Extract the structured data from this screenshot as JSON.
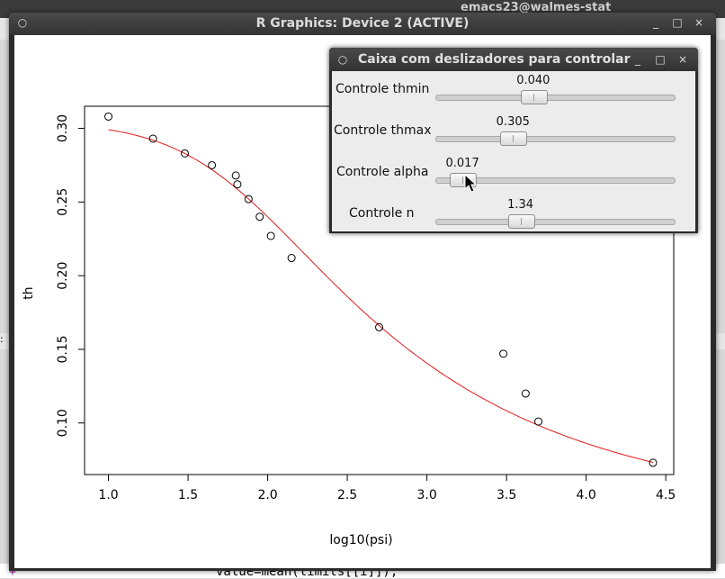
{
  "background": {
    "emacs_title": "emacs23@walmes-stat",
    "emacs_code": "value=mean(limits[[i]]),",
    "prompt_symbol": "+",
    "fringe_left": ":"
  },
  "graphics_window": {
    "title": "R Graphics: Device 2 (ACTIVE)",
    "controls": {
      "menu": "○",
      "minimize": "_",
      "maximize": "□",
      "close": "×"
    }
  },
  "slider_dialog": {
    "title": "Caixa com deslizadores para controlar",
    "controls": {
      "menu": "○",
      "minimize": "_",
      "maximize": "□",
      "close": "×"
    },
    "sliders": [
      {
        "label": "Controle thmin",
        "value": "0.040",
        "fraction": 0.4
      },
      {
        "label": "Controle thmax",
        "value": "0.305",
        "fraction": 0.305
      },
      {
        "label": "Controle alpha",
        "value": "0.017",
        "fraction": 0.068
      },
      {
        "label": "Controle n",
        "value": "1.34",
        "fraction": 0.34
      }
    ]
  },
  "chart_data": {
    "type": "scatter",
    "xlabel": "log10(psi)",
    "ylabel": "th",
    "xlim": [
      0.85,
      4.55
    ],
    "ylim": [
      0.065,
      0.315
    ],
    "xticks": [
      "1.0",
      "1.5",
      "2.0",
      "2.5",
      "3.0",
      "3.5",
      "4.0",
      "4.5"
    ],
    "xtick_values": [
      1.0,
      1.5,
      2.0,
      2.5,
      3.0,
      3.5,
      4.0,
      4.5
    ],
    "yticks": [
      "0.10",
      "0.15",
      "0.20",
      "0.25",
      "0.30"
    ],
    "ytick_values": [
      0.1,
      0.15,
      0.2,
      0.25,
      0.3
    ],
    "grid": false,
    "points": [
      [
        1.0,
        0.308
      ],
      [
        1.28,
        0.293
      ],
      [
        1.48,
        0.283
      ],
      [
        1.65,
        0.275
      ],
      [
        1.8,
        0.268
      ],
      [
        1.81,
        0.262
      ],
      [
        1.88,
        0.252
      ],
      [
        1.95,
        0.24
      ],
      [
        2.02,
        0.227
      ],
      [
        2.15,
        0.212
      ],
      [
        2.7,
        0.165
      ],
      [
        3.48,
        0.147
      ],
      [
        3.62,
        0.12
      ],
      [
        3.7,
        0.101
      ],
      [
        4.42,
        0.073
      ]
    ],
    "fit_curve": {
      "color": "#e41a1c",
      "model": "van Genuchten",
      "params": {
        "thmin": 0.04,
        "thmax": 0.305,
        "alpha": 0.017,
        "n": 1.34
      }
    },
    "point_color": "#000000"
  }
}
